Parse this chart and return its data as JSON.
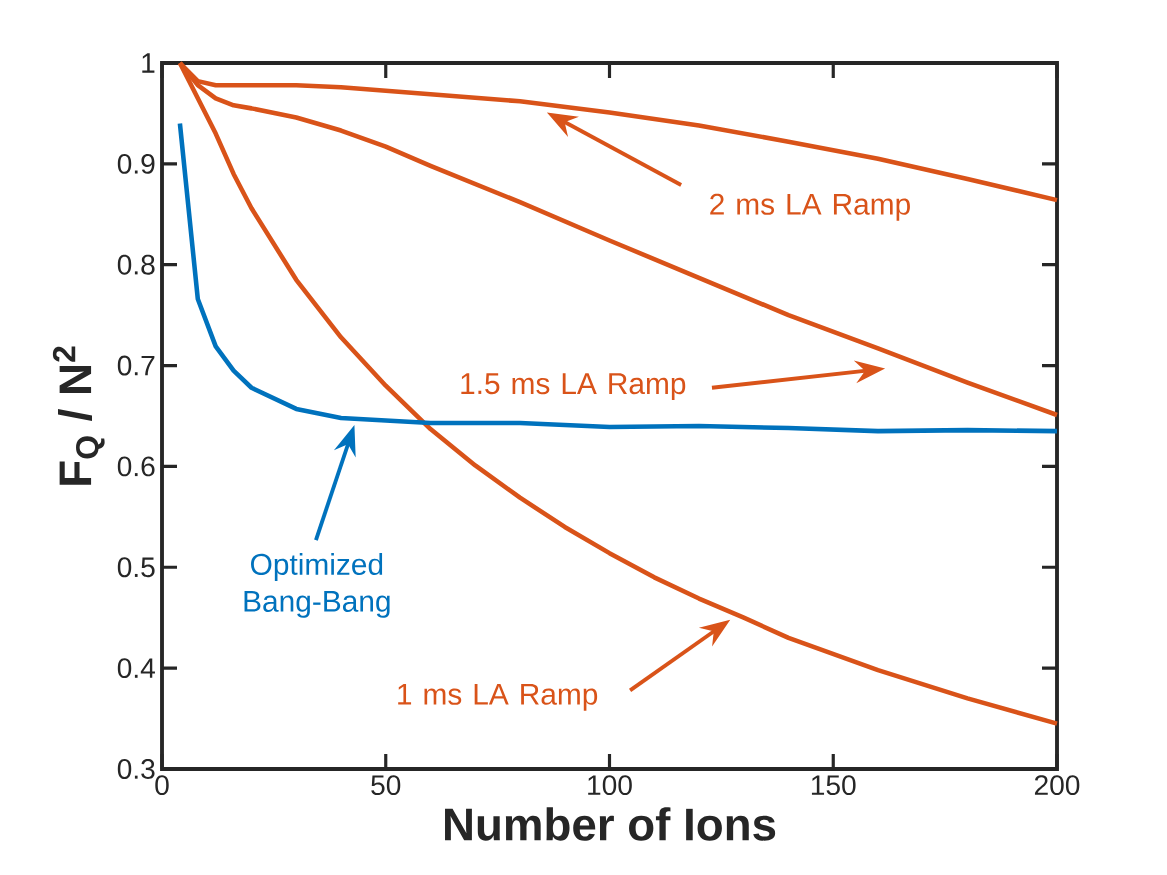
{
  "chart_data": {
    "type": "line",
    "xlabel": "Number of Ions",
    "ylabel": "F$_{Q}$ / N$^{2}$",
    "xlim": [
      0,
      200
    ],
    "ylim": [
      0.3,
      1
    ],
    "xticks": [
      0,
      50,
      100,
      150,
      200
    ],
    "yticks": [
      0.3,
      0.4,
      0.5,
      0.6,
      0.7,
      0.8,
      0.9,
      1
    ],
    "grid": false,
    "marker": "none",
    "line_style": "solid",
    "series": [
      {
        "color": "#d95319",
        "x": [
          4,
          8,
          12,
          20,
          30,
          40,
          60,
          80,
          100,
          120,
          140,
          160,
          180,
          200
        ],
        "values": [
          1.0,
          0.982,
          0.978,
          0.978,
          0.978,
          0.976,
          0.969,
          0.962,
          0.951,
          0.938,
          0.922,
          0.905,
          0.885,
          0.864
        ]
      },
      {
        "color": "#d95319",
        "x": [
          4,
          8,
          12,
          16,
          20,
          30,
          40,
          50,
          60,
          80,
          100,
          120,
          140,
          160,
          180,
          200
        ],
        "values": [
          1.0,
          0.978,
          0.965,
          0.958,
          0.955,
          0.946,
          0.933,
          0.917,
          0.898,
          0.862,
          0.824,
          0.787,
          0.75,
          0.717,
          0.683,
          0.651
        ]
      },
      {
        "color": "#d95319",
        "x": [
          4,
          8,
          12,
          16,
          20,
          30,
          40,
          50,
          60,
          70,
          80,
          90,
          100,
          110,
          120,
          130,
          140,
          160,
          180,
          200
        ],
        "values": [
          1.0,
          0.965,
          0.93,
          0.89,
          0.856,
          0.785,
          0.728,
          0.68,
          0.637,
          0.601,
          0.569,
          0.54,
          0.514,
          0.49,
          0.469,
          0.45,
          0.43,
          0.398,
          0.37,
          0.345
        ]
      },
      {
        "color": "#0072bd",
        "x": [
          4,
          8,
          12,
          16,
          20,
          30,
          40,
          60,
          80,
          100,
          120,
          140,
          160,
          180,
          200
        ],
        "values": [
          0.94,
          0.766,
          0.719,
          0.695,
          0.678,
          0.657,
          0.648,
          0.643,
          0.643,
          0.639,
          0.64,
          0.638,
          0.635,
          0.636,
          0.635
        ]
      }
    ],
    "annotations": [
      "2 ms LA Ramp",
      "1.5 ms LA Ramp",
      "1 ms LA Ramp",
      "Optimized Bang-Bang"
    ]
  }
}
